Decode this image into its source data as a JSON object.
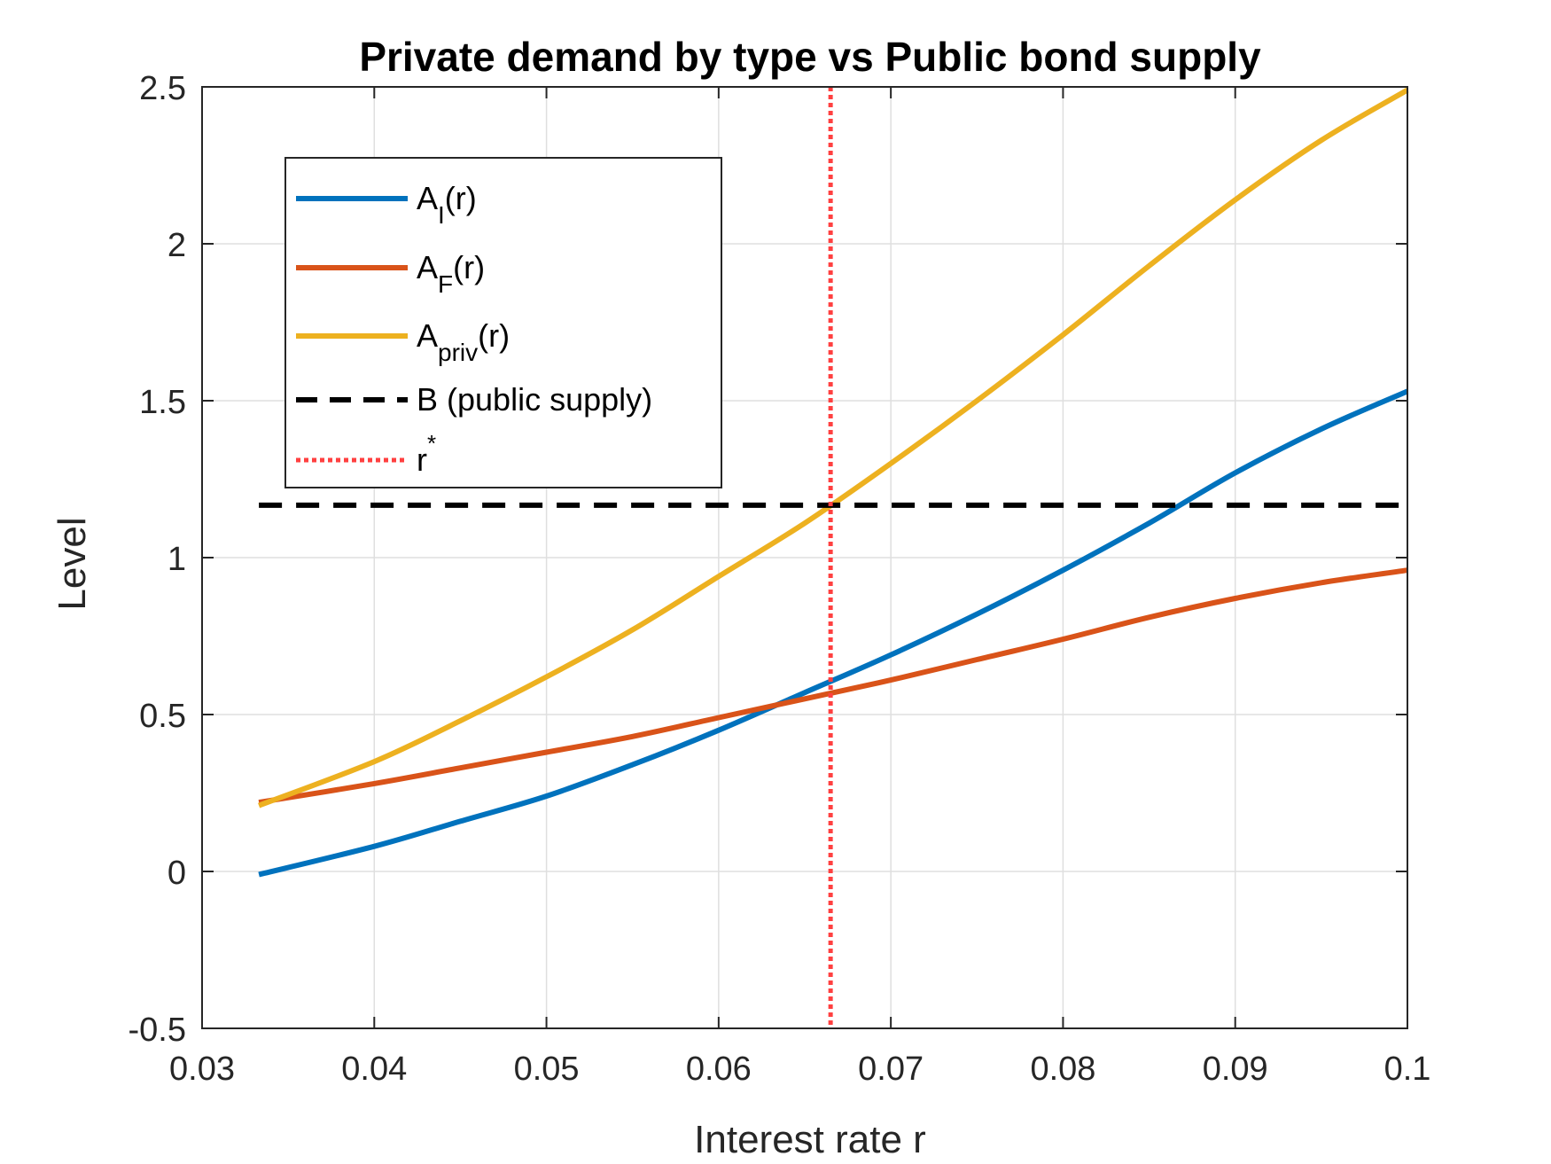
{
  "chart_data": {
    "type": "line",
    "title": "Private demand by type vs Public bond supply",
    "xlabel": "Interest rate r",
    "ylabel": "Level",
    "xlim": [
      0.03,
      0.1
    ],
    "ylim": [
      -0.5,
      2.5
    ],
    "xticks": [
      0.03,
      0.04,
      0.05,
      0.06,
      0.07,
      0.08,
      0.09,
      0.1
    ],
    "xtick_labels": [
      "0.03",
      "0.04",
      "0.05",
      "0.06",
      "0.07",
      "0.08",
      "0.09",
      "0.1"
    ],
    "yticks": [
      -0.5,
      0,
      0.5,
      1,
      1.5,
      2,
      2.5
    ],
    "ytick_labels": [
      "-0.5",
      "0",
      "0.5",
      "1",
      "1.5",
      "2",
      "2.5"
    ],
    "grid": true,
    "legend_position": "top-left",
    "series": [
      {
        "key": "AI",
        "legend_base": "A",
        "legend_sub": "I",
        "legend_rest": "(r)",
        "color": "#0072BD",
        "style": "solid",
        "x": [
          0.0333,
          0.04,
          0.045,
          0.05,
          0.055,
          0.06,
          0.065,
          0.07,
          0.075,
          0.08,
          0.085,
          0.09,
          0.095,
          0.1
        ],
        "y": [
          -0.01,
          0.08,
          0.16,
          0.24,
          0.34,
          0.45,
          0.57,
          0.69,
          0.82,
          0.96,
          1.11,
          1.27,
          1.41,
          1.53
        ]
      },
      {
        "key": "AF",
        "legend_base": "A",
        "legend_sub": "F",
        "legend_rest": "(r)",
        "color": "#D95319",
        "style": "solid",
        "x": [
          0.0333,
          0.04,
          0.045,
          0.05,
          0.055,
          0.06,
          0.065,
          0.07,
          0.075,
          0.08,
          0.085,
          0.09,
          0.095,
          0.1
        ],
        "y": [
          0.22,
          0.28,
          0.33,
          0.38,
          0.43,
          0.49,
          0.55,
          0.61,
          0.675,
          0.74,
          0.81,
          0.87,
          0.92,
          0.96
        ]
      },
      {
        "key": "Apriv",
        "legend_base": "A",
        "legend_sub": "priv",
        "legend_rest": "(r)",
        "color": "#EDB120",
        "style": "solid",
        "x": [
          0.0333,
          0.04,
          0.045,
          0.05,
          0.055,
          0.06,
          0.065,
          0.07,
          0.075,
          0.08,
          0.085,
          0.09,
          0.095,
          0.1
        ],
        "y": [
          0.21,
          0.35,
          0.48,
          0.62,
          0.77,
          0.94,
          1.11,
          1.3,
          1.5,
          1.71,
          1.93,
          2.14,
          2.33,
          2.49
        ]
      }
    ],
    "supply": {
      "key": "B",
      "legend": "B (public supply)",
      "color": "#000000",
      "style": "dashed",
      "value": 1.167,
      "x_from": 0.0333,
      "x_to": 0.1
    },
    "equilibrium": {
      "key": "rstar",
      "legend_base": "r",
      "legend_sup": "*",
      "color": "#FF4040",
      "style": "dotted",
      "value": 0.0665
    }
  }
}
